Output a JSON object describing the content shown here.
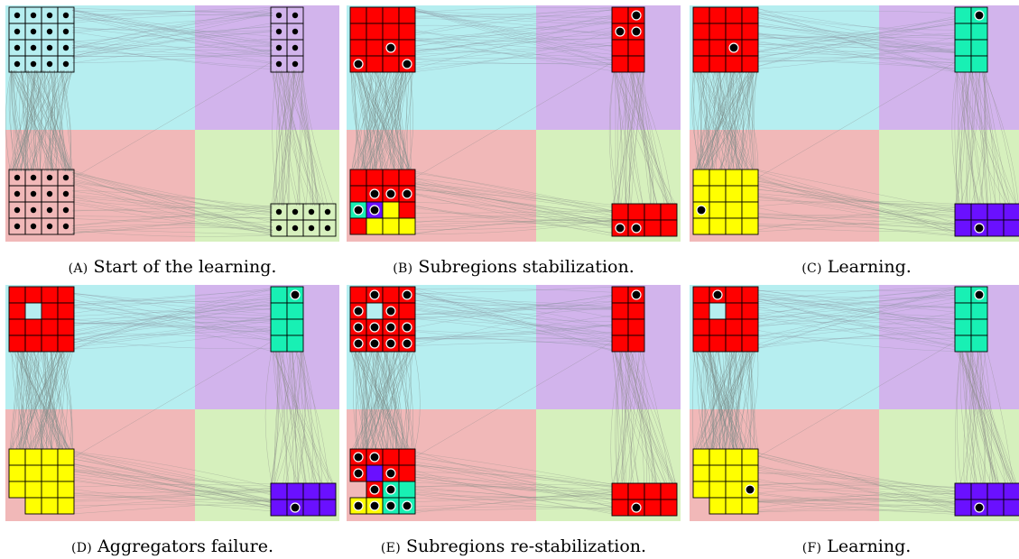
{
  "colors": {
    "blue_region": "#b6eef0",
    "purple_region": "#d2b4ec",
    "red_region": "#f1b8b8",
    "green_region": "#d6f0bd",
    "red_cell": "#ff0000",
    "yellow_cell": "#ffff00",
    "teal_cell": "#18f0b4",
    "violet_cell": "#6a10ff"
  },
  "panels": [
    {
      "label": "(A)",
      "caption": "Start of the learning.",
      "mono": true,
      "tl": {
        "rows": 4,
        "cols": 4,
        "fill": "none",
        "dots": "all"
      },
      "tr": {
        "rows": 4,
        "cols": 2,
        "fill": "none",
        "dots": "all"
      },
      "bl": {
        "rows": 4,
        "cols": 4,
        "fill": "none",
        "dots": "all"
      },
      "br": {
        "rows": 2,
        "cols": 4,
        "fill": "none",
        "dots": "all"
      }
    },
    {
      "label": "(B)",
      "caption": "Subregions stabilization.",
      "tl": {
        "rows": 4,
        "cols": 4,
        "fill": "red",
        "dots": [
          [
            2,
            2
          ],
          [
            3,
            0
          ],
          [
            3,
            3
          ]
        ]
      },
      "tr": {
        "rows": 4,
        "cols": 2,
        "fill": "red",
        "dots": [
          [
            0,
            1
          ],
          [
            1,
            0
          ],
          [
            1,
            1
          ]
        ]
      },
      "bl": {
        "rows": 4,
        "cols": 4,
        "fill": "red",
        "cells": [
          [
            2,
            0,
            "teal"
          ],
          [
            2,
            1,
            "violet"
          ],
          [
            2,
            2,
            "yellow"
          ],
          [
            3,
            1,
            "yellow"
          ],
          [
            3,
            2,
            "yellow"
          ],
          [
            3,
            3,
            "yellow"
          ]
        ],
        "dots": [
          [
            1,
            1
          ],
          [
            1,
            2
          ],
          [
            1,
            3
          ],
          [
            2,
            0
          ],
          [
            2,
            1
          ]
        ]
      },
      "br": {
        "rows": 2,
        "cols": 4,
        "fill": "red",
        "dots": [
          [
            1,
            0
          ],
          [
            1,
            1
          ]
        ]
      }
    },
    {
      "label": "(C)",
      "caption": "Learning.",
      "tl": {
        "rows": 4,
        "cols": 4,
        "fill": "red",
        "dots": [
          [
            2,
            2
          ]
        ]
      },
      "tr": {
        "rows": 4,
        "cols": 2,
        "fill": "teal",
        "dots": [
          [
            0,
            1
          ]
        ]
      },
      "bl": {
        "rows": 4,
        "cols": 4,
        "fill": "yellow",
        "dots": [
          [
            2,
            0
          ]
        ]
      },
      "br": {
        "rows": 2,
        "cols": 4,
        "fill": "violet",
        "dots": [
          [
            1,
            1
          ]
        ]
      }
    },
    {
      "label": "(D)",
      "caption": "Aggregators failure.",
      "tl": {
        "rows": 4,
        "cols": 4,
        "fill": "red",
        "holes": [
          [
            1,
            1
          ]
        ],
        "dots": []
      },
      "tr": {
        "rows": 4,
        "cols": 2,
        "fill": "teal",
        "dots": [
          [
            0,
            1
          ]
        ]
      },
      "bl": {
        "rows": 4,
        "cols": 4,
        "fill": "yellow",
        "holes": [
          [
            3,
            0
          ]
        ],
        "dots": []
      },
      "br": {
        "rows": 2,
        "cols": 4,
        "fill": "violet",
        "dots": [
          [
            1,
            1
          ]
        ]
      }
    },
    {
      "label": "(E)",
      "caption": "Subregions re-stabilization.",
      "tl": {
        "rows": 4,
        "cols": 4,
        "fill": "red",
        "holes": [
          [
            1,
            1
          ]
        ],
        "dots": [
          [
            0,
            1
          ],
          [
            0,
            3
          ],
          [
            1,
            0
          ],
          [
            1,
            2
          ],
          [
            2,
            0
          ],
          [
            2,
            1
          ],
          [
            2,
            2
          ],
          [
            2,
            3
          ],
          [
            3,
            0
          ],
          [
            3,
            1
          ],
          [
            3,
            2
          ],
          [
            3,
            3
          ]
        ]
      },
      "tr": {
        "rows": 4,
        "cols": 2,
        "fill": "red",
        "dots": [
          [
            0,
            1
          ]
        ]
      },
      "bl": {
        "rows": 4,
        "cols": 4,
        "fill": "red",
        "cells": [
          [
            1,
            1,
            "violet"
          ],
          [
            2,
            2,
            "teal"
          ],
          [
            2,
            3,
            "teal"
          ],
          [
            3,
            0,
            "yellow"
          ],
          [
            3,
            1,
            "yellow"
          ],
          [
            3,
            2,
            "teal"
          ],
          [
            3,
            3,
            "teal"
          ]
        ],
        "holes": [
          [
            2,
            0
          ]
        ],
        "dots": [
          [
            0,
            0
          ],
          [
            0,
            1
          ],
          [
            1,
            0
          ],
          [
            1,
            2
          ],
          [
            2,
            1
          ],
          [
            2,
            2
          ],
          [
            3,
            0
          ],
          [
            3,
            1
          ],
          [
            3,
            2
          ],
          [
            3,
            3
          ]
        ]
      },
      "br": {
        "rows": 2,
        "cols": 4,
        "fill": "red",
        "dots": [
          [
            1,
            1
          ]
        ]
      }
    },
    {
      "label": "(F)",
      "caption": "Learning.",
      "tl": {
        "rows": 4,
        "cols": 4,
        "fill": "red",
        "holes": [
          [
            1,
            1
          ]
        ],
        "dots": [
          [
            0,
            1
          ]
        ]
      },
      "tr": {
        "rows": 4,
        "cols": 2,
        "fill": "teal",
        "dots": [
          [
            0,
            1
          ]
        ]
      },
      "bl": {
        "rows": 4,
        "cols": 4,
        "fill": "yellow",
        "holes": [
          [
            3,
            0
          ]
        ],
        "dots": [
          [
            2,
            3
          ]
        ]
      },
      "br": {
        "rows": 2,
        "cols": 4,
        "fill": "violet",
        "dots": [
          [
            1,
            1
          ]
        ]
      }
    }
  ]
}
